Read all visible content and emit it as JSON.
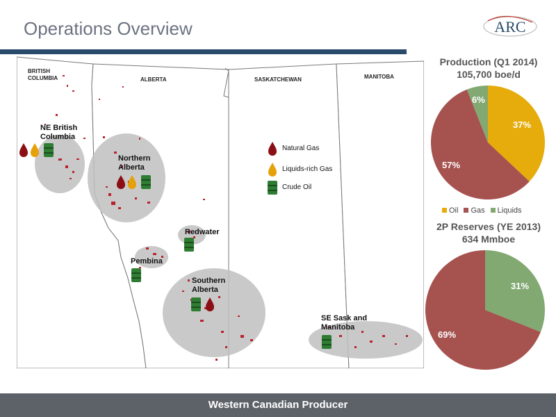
{
  "header": {
    "title": "Operations Overview",
    "logo_text": "ARC"
  },
  "map": {
    "provinces": {
      "bc": "BRITISH\nCOLUMBIA",
      "ab": "ALBERTA",
      "sk": "SASKATCHEWAN",
      "mb": "MANITOBA"
    },
    "regions": {
      "ne_bc": "NE British\nColumbia",
      "northern_ab": "Northern\nAlberta",
      "redwater": "Redwater",
      "pembina": "Pembina",
      "southern_ab": "Southern\nAlberta",
      "se_sask": "SE Sask and\nManitoba"
    },
    "legend": {
      "gas": "Natural Gas",
      "liquids": "Liquids-rich Gas",
      "oil": "Crude Oil"
    }
  },
  "colors": {
    "oil": "#e5ac0b",
    "gas": "#a6524f",
    "liquids": "#82a972",
    "navy": "#2a4a6b",
    "footer": "#5d6269"
  },
  "production_chart": {
    "title_line1": "Production (Q1 2014)",
    "title_line2": "105,700 boe/d",
    "labels": {
      "oil": "37%",
      "gas": "57%",
      "liquids": "6%"
    }
  },
  "legend_labels": {
    "oil": "Oil",
    "gas": "Gas",
    "liquids": "Liquids"
  },
  "reserves_chart": {
    "title_line1": "2P Reserves (YE 2013)",
    "title_line2": "634 Mmboe",
    "labels": {
      "liquids": "31%",
      "gas": "69%"
    }
  },
  "chart_data": [
    {
      "type": "pie",
      "title": "Production (Q1 2014)",
      "subtitle": "105,700 boe/d",
      "categories": [
        "Oil",
        "Gas",
        "Liquids"
      ],
      "values": [
        37,
        57,
        6
      ],
      "legend_position": "bottom"
    },
    {
      "type": "pie",
      "title": "2P Reserves (YE 2013)",
      "subtitle": "634 Mmboe",
      "categories": [
        "Oil",
        "Gas",
        "Liquids"
      ],
      "values": [
        0,
        69,
        31
      ]
    }
  ],
  "footer": {
    "text": "Western Canadian Producer"
  }
}
